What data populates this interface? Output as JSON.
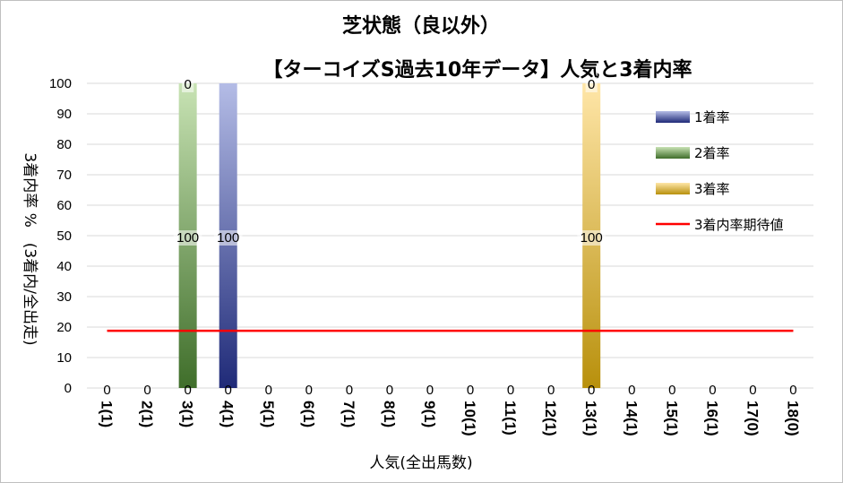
{
  "chart_data": {
    "type": "bar",
    "title_line1": "芝状態（良以外）",
    "title_line2": "【ターコイズS過去10年データ】人気と3着内率",
    "xlabel": "人気(全出馬数)",
    "ylabel": "3着内率 %　(3着内/全出走)",
    "ylim": [
      0,
      100
    ],
    "yticks": [
      0,
      10,
      20,
      30,
      40,
      50,
      60,
      70,
      80,
      90,
      100
    ],
    "categories": [
      "1(1)",
      "2(1)",
      "3(1)",
      "4(1)",
      "5(1)",
      "6(1)",
      "7(1)",
      "8(1)",
      "9(1)",
      "10(1)",
      "11(1)",
      "12(1)",
      "13(1)",
      "14(1)",
      "15(1)",
      "16(1)",
      "17(0)",
      "18(0)"
    ],
    "series": [
      {
        "name": "1着率",
        "colors": [
          "#1f2a78",
          "#b4bce6"
        ],
        "values": [
          0,
          0,
          0,
          100,
          0,
          0,
          0,
          0,
          0,
          0,
          0,
          0,
          0,
          0,
          0,
          0,
          0,
          0
        ]
      },
      {
        "name": "2着率",
        "colors": [
          "#3f6e2a",
          "#c8e3b4"
        ],
        "values": [
          0,
          0,
          100,
          0,
          0,
          0,
          0,
          0,
          0,
          0,
          0,
          0,
          0,
          0,
          0,
          0,
          0,
          0
        ]
      },
      {
        "name": "3着率",
        "colors": [
          "#b8900c",
          "#ffe6a8"
        ],
        "values": [
          0,
          0,
          0,
          0,
          0,
          0,
          0,
          0,
          0,
          0,
          0,
          0,
          100,
          0,
          0,
          0,
          0,
          0
        ]
      }
    ],
    "bottom_labels": [
      "0",
      "0",
      "0",
      "0",
      "0",
      "0",
      "0",
      "0",
      "0",
      "0",
      "0",
      "0",
      "0",
      "0",
      "0",
      "0",
      "0",
      "0"
    ],
    "mid_labels": {
      "3(1)": "100",
      "4(1)": "100",
      "13(1)": "100"
    },
    "top_labels": {
      "3(1)": "0",
      "13(1)": "0"
    },
    "reference_line": {
      "name": "3着内率期待値",
      "value": 18.8,
      "color": "#ff0000"
    },
    "grid": true,
    "legend_position": "right"
  }
}
